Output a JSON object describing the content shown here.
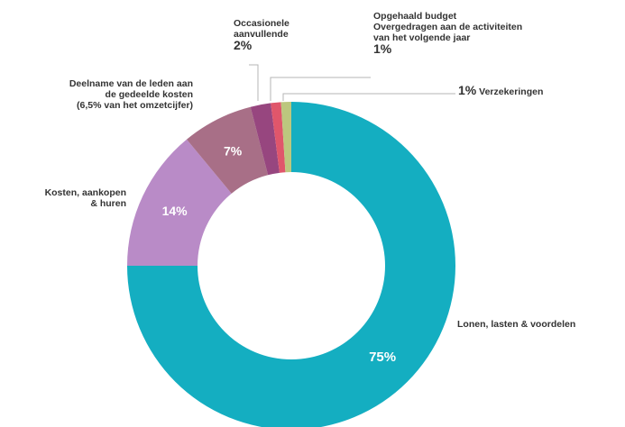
{
  "chart_data": {
    "type": "pie",
    "donut": true,
    "start_angle_deg": 0,
    "slices": [
      {
        "key": "lonen",
        "label": "Lonen, lasten & voordelen",
        "value": 75,
        "pct_label": "75%",
        "color": "#14aec1"
      },
      {
        "key": "kosten",
        "label": "Kosten, aankopen & huren",
        "value": 14,
        "pct_label": "14%",
        "color": "#b98bc7"
      },
      {
        "key": "dochter",
        "label": "Deelname van de leden aan de gedeelde kosten (6,5% van het omzetcijfer)",
        "value": 7,
        "pct_label": "7%",
        "color": "#a86f87"
      },
      {
        "key": "occasionele",
        "label": "Occasionele aanvullende",
        "value": 2,
        "pct_label": "2%",
        "color": "#97467f"
      },
      {
        "key": "budget",
        "label": "Opgehaald budget Overgedragen aan de activiteiten van het volgende jaar",
        "value": 1,
        "pct_label": "1%",
        "color": "#e0566b"
      },
      {
        "key": "verzekeringen",
        "label": "Verzekeringen",
        "value": 1,
        "pct_label": "1%",
        "color": "#bcc77e"
      }
    ]
  },
  "labels": {
    "lonen": "Lonen, lasten & voordelen",
    "kosten_1": "Kosten, aankopen",
    "kosten_2": "& huren",
    "dochter_1": "Deelname van de leden aan",
    "dochter_2": "de gedeelde kosten",
    "dochter_3": "(6,5% van het omzetcijfer)",
    "occ_1": "Occasionele",
    "occ_2": "aanvullende",
    "occ_pct": "2%",
    "budget_1": "Opgehaald budget",
    "budget_2": "Overgedragen aan de activiteiten",
    "budget_3": "van het volgende jaar",
    "budget_pct": "1%",
    "verz_pct": "1%",
    "verz": "Verzekeringen"
  }
}
